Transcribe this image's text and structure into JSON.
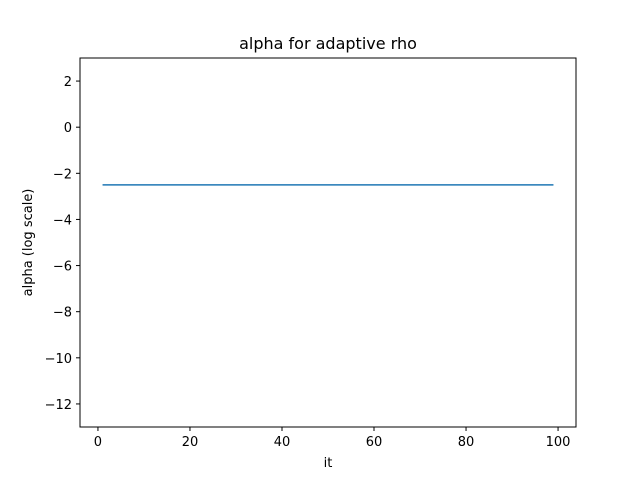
{
  "chart_data": {
    "type": "line",
    "title": "alpha for adaptive rho",
    "xlabel": "it",
    "ylabel": "alpha (log scale)",
    "xlim": [
      -3.9,
      103.9
    ],
    "ylim": [
      -13,
      3
    ],
    "xticks": [
      0,
      20,
      40,
      60,
      80,
      100
    ],
    "xtick_labels": [
      "0",
      "20",
      "40",
      "60",
      "80",
      "100"
    ],
    "yticks": [
      2,
      0,
      -2,
      -4,
      -6,
      -8,
      -10,
      -12
    ],
    "ytick_labels": [
      "2",
      "0",
      "−2",
      "−4",
      "−6",
      "−8",
      "−10",
      "−12"
    ],
    "grid": false,
    "series": [
      {
        "color": "#1f77b4",
        "x": [
          1,
          99
        ],
        "y": [
          -2.5,
          -2.5
        ]
      }
    ]
  }
}
